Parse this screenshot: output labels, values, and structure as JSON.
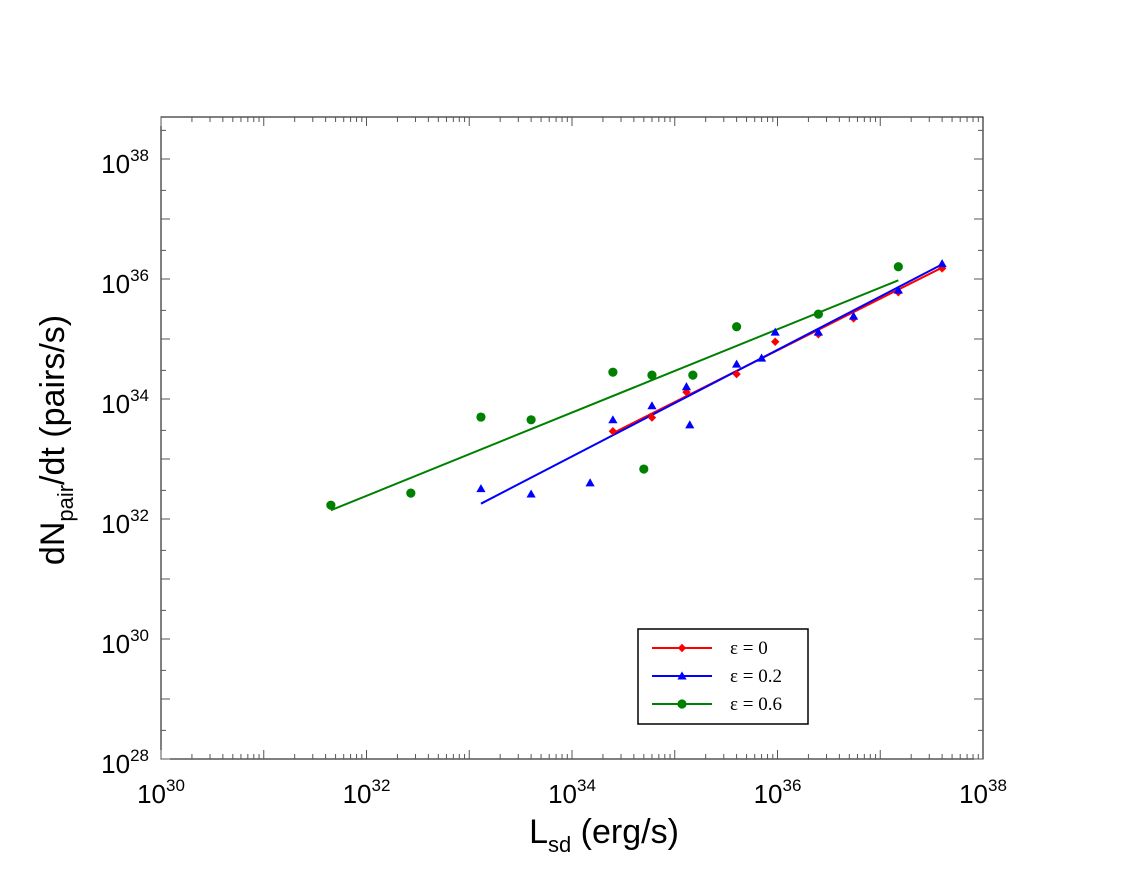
{
  "chart_data": {
    "type": "scatter",
    "title": "",
    "xlabel": {
      "main": "L",
      "sub": "sd",
      "rest": " (erg/s)"
    },
    "ylabel": {
      "main": "dN",
      "sub": "pair",
      "rest": "/dt (pairs/s)"
    },
    "xscale": "log",
    "yscale": "log",
    "xlim": [
      1e+30,
      1e+38
    ],
    "ylim": [
      1e+28,
      1e+38
    ],
    "x_ticks": [
      {
        "base": "10",
        "exp": "30",
        "value": 1e+30
      },
      {
        "base": "10",
        "exp": "32",
        "value": 1e+32
      },
      {
        "base": "10",
        "exp": "34",
        "value": 1e+34
      },
      {
        "base": "10",
        "exp": "36",
        "value": 1e+36
      },
      {
        "base": "10",
        "exp": "38",
        "value": 1e+38
      }
    ],
    "y_ticks": [
      {
        "base": "10",
        "exp": "28",
        "value": 1e+28
      },
      {
        "base": "10",
        "exp": "30",
        "value": 1e+30
      },
      {
        "base": "10",
        "exp": "32",
        "value": 1e+32
      },
      {
        "base": "10",
        "exp": "34",
        "value": 1e+34
      },
      {
        "base": "10",
        "exp": "36",
        "value": 1e+36
      },
      {
        "base": "10",
        "exp": "38",
        "value": 1e+38
      }
    ],
    "grid": false,
    "legend_position": "bottom-right",
    "series": [
      {
        "name": "ε = 0",
        "color": "#ff0000",
        "marker": "diamond",
        "points": [
          [
            2.5e+34,
            2.9e+33
          ],
          [
            6e+34,
            4.9e+33
          ],
          [
            1.3e+35,
            1.3e+34
          ],
          [
            4e+35,
            2.6e+34
          ],
          [
            9.5e+35,
            9e+34
          ],
          [
            2.5e+36,
            1.2e+35
          ],
          [
            5.5e+36,
            2.2e+35
          ],
          [
            1.5e+37,
            6e+35
          ],
          [
            4e+37,
            1.5e+36
          ]
        ],
        "fit": [
          [
            2.5e+34,
            2.7e+33
          ],
          [
            4e+37,
            1.55e+36
          ]
        ]
      },
      {
        "name": "ε = 0.2",
        "color": "#0000ff",
        "marker": "triangle",
        "points": [
          [
            1.3e+33,
            3.2e+32
          ],
          [
            4e+33,
            2.6e+32
          ],
          [
            1.5e+34,
            4e+32
          ],
          [
            2.5e+34,
            4.5e+33
          ],
          [
            6e+34,
            7.7e+33
          ],
          [
            1.3e+35,
            1.6e+34
          ],
          [
            1.4e+35,
            3.7e+33
          ],
          [
            4e+35,
            3.8e+34
          ],
          [
            7e+35,
            4.8e+34
          ],
          [
            9.5e+35,
            1.3e+35
          ],
          [
            2.5e+36,
            1.3e+35
          ],
          [
            5.5e+36,
            2.4e+35
          ],
          [
            1.5e+37,
            6.5e+35
          ],
          [
            4e+37,
            1.8e+36
          ]
        ],
        "fit": [
          [
            1.3e+33,
            1.8e+32
          ],
          [
            4e+37,
            1.75e+36
          ]
        ]
      },
      {
        "name": "ε = 0.6",
        "color": "#008000",
        "marker": "circle",
        "points": [
          [
            4.5e+31,
            1.7e+32
          ],
          [
            2.7e+32,
            2.7e+32
          ],
          [
            1.3e+33,
            5e+33
          ],
          [
            4e+33,
            4.5e+33
          ],
          [
            2.5e+34,
            2.8e+34
          ],
          [
            5e+34,
            6.8e+32
          ],
          [
            6e+34,
            2.5e+34
          ],
          [
            1.5e+35,
            2.5e+34
          ],
          [
            4e+35,
            1.6e+35
          ],
          [
            2.5e+36,
            2.6e+35
          ],
          [
            1.5e+37,
            1.6e+36
          ]
        ],
        "fit": [
          [
            4.5e+31,
            1.4e+32
          ],
          [
            1.5e+37,
            9.5e+35
          ]
        ]
      }
    ]
  }
}
